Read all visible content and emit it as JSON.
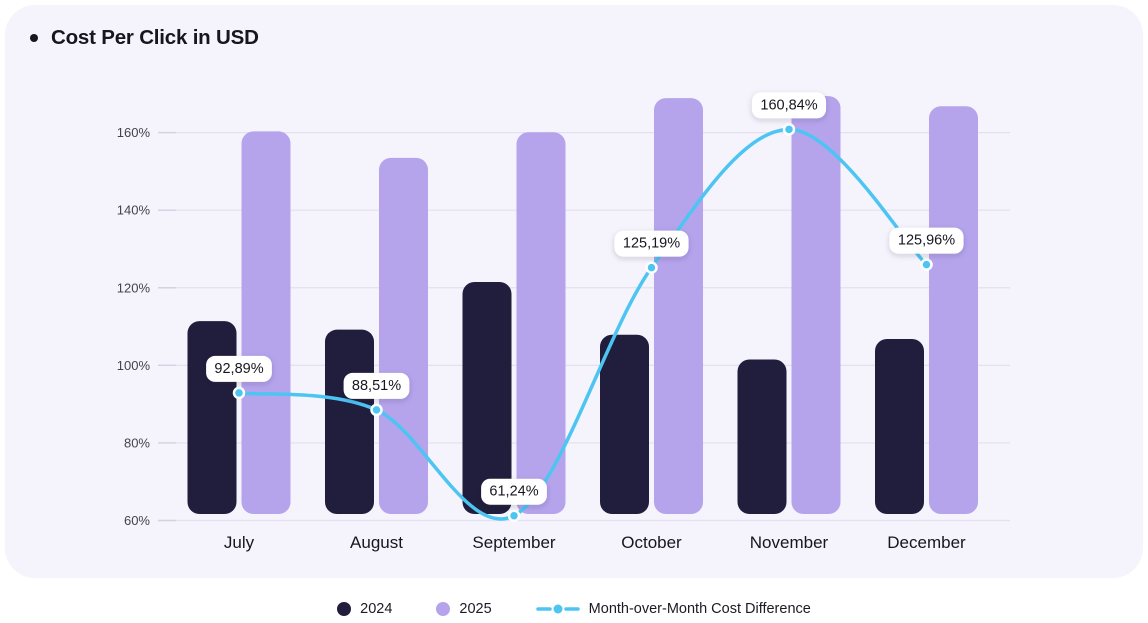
{
  "title": "Cost Per Click in USD",
  "colors": {
    "card_bg": "#F5F3FB",
    "bar_2024": "#211D3C",
    "bar_2025": "#B5A3EC",
    "line": "#4CC5F2",
    "grid": "#E4E0EF",
    "tick": "#D5D1E3",
    "text_dark": "#17161F",
    "text_axis": "#45424F",
    "label_bg": "#FFFFFF"
  },
  "chart_data": {
    "type": "bar",
    "title": "Cost Per Click in USD",
    "categories": [
      "July",
      "August",
      "September",
      "October",
      "November",
      "December"
    ],
    "series": [
      {
        "name": "2024",
        "type": "bar",
        "color": "#211D3C",
        "values": [
          111.4,
          109.2,
          121.5,
          107.9,
          101.5,
          106.8
        ]
      },
      {
        "name": "2025",
        "type": "bar",
        "color": "#B5A3EC",
        "values": [
          160.3,
          153.5,
          160.1,
          168.9,
          169.4,
          166.8
        ]
      },
      {
        "name": "Month-over-Month Cost Difference",
        "type": "line",
        "color": "#4CC5F2",
        "values": [
          92.89,
          88.51,
          61.24,
          125.19,
          160.84,
          125.96
        ],
        "point_labels": [
          "92,89%",
          "88,51%",
          "61,24%",
          "125,19%",
          "160,84%",
          "125,96%"
        ]
      }
    ],
    "xlabel": "",
    "ylabel": "",
    "y_ticks": [
      60,
      80,
      100,
      120,
      140,
      160
    ],
    "y_tick_labels": [
      "60%",
      "80%",
      "100%",
      "120%",
      "140%",
      "160%"
    ],
    "ylim": [
      60,
      172
    ],
    "grid": true,
    "legend_position": "bottom"
  },
  "legend": {
    "items": [
      {
        "label": "2024",
        "marker": "circle",
        "color": "#211D3C"
      },
      {
        "label": "2025",
        "marker": "circle",
        "color": "#B5A3EC"
      },
      {
        "label": "Month-over-Month Cost Difference",
        "marker": "dashed-line-dot",
        "color": "#4CC5F2"
      }
    ]
  }
}
